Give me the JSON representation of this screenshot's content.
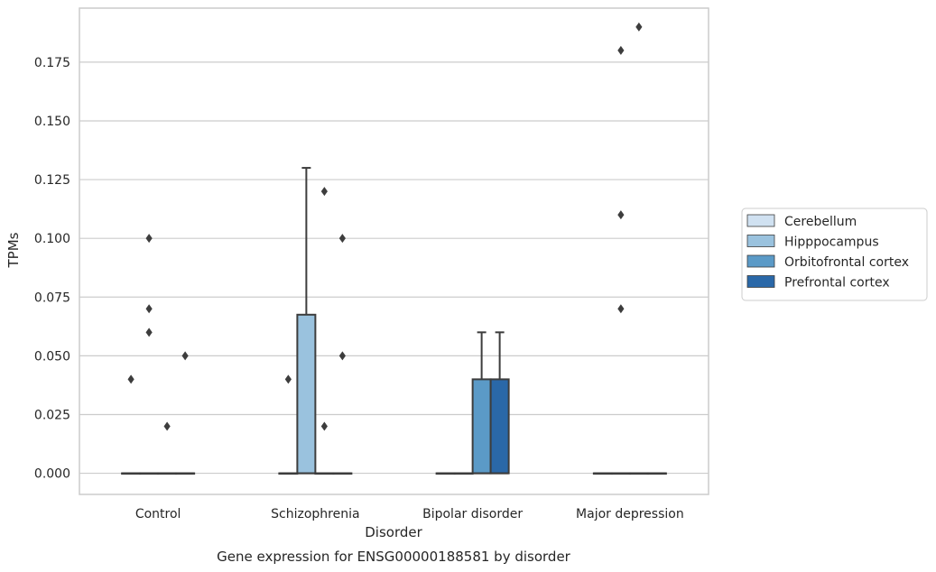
{
  "caption": "Gene expression for ENSG00000188581 by disorder",
  "chart_data": {
    "type": "box",
    "title": "",
    "xlabel": "Disorder",
    "ylabel": "TPMs",
    "ylim": [
      -0.009,
      0.198
    ],
    "yticks": [
      0.0,
      0.025,
      0.05,
      0.075,
      0.1,
      0.125,
      0.15,
      0.175
    ],
    "ytick_labels": [
      "0.000",
      "0.025",
      "0.050",
      "0.075",
      "0.100",
      "0.125",
      "0.150",
      "0.175"
    ],
    "grid": "horizontal",
    "legend_position": "right",
    "categories": [
      "Control",
      "Schizophrenia",
      "Bipolar disorder",
      "Major depression"
    ],
    "series": [
      {
        "name": "Cerebellum",
        "color": "#d0e1f1",
        "boxes": [
          {
            "category": "Control",
            "q1": 0,
            "median": 0,
            "q3": 0,
            "whisker_low": 0,
            "whisker_high": 0,
            "outliers": [
              0.04
            ]
          },
          {
            "category": "Schizophrenia",
            "q1": 0,
            "median": 0,
            "q3": 0,
            "whisker_low": 0,
            "whisker_high": 0,
            "outliers": [
              0.04
            ]
          },
          {
            "category": "Bipolar disorder",
            "q1": 0,
            "median": 0,
            "q3": 0,
            "whisker_low": 0,
            "whisker_high": 0,
            "outliers": []
          },
          {
            "category": "Major depression",
            "q1": 0,
            "median": 0,
            "q3": 0,
            "whisker_low": 0,
            "whisker_high": 0,
            "outliers": []
          }
        ]
      },
      {
        "name": "Hipppocampus",
        "color": "#9ac2de",
        "boxes": [
          {
            "category": "Control",
            "q1": 0,
            "median": 0,
            "q3": 0,
            "whisker_low": 0,
            "whisker_high": 0,
            "outliers": [
              0.1,
              0.07,
              0.06
            ]
          },
          {
            "category": "Schizophrenia",
            "q1": 0,
            "median": 0,
            "q3": 0.0675,
            "whisker_low": 0,
            "whisker_high": 0.13,
            "outliers": []
          },
          {
            "category": "Bipolar disorder",
            "q1": 0,
            "median": 0,
            "q3": 0,
            "whisker_low": 0,
            "whisker_high": 0,
            "outliers": []
          },
          {
            "category": "Major depression",
            "q1": 0,
            "median": 0,
            "q3": 0,
            "whisker_low": 0,
            "whisker_high": 0,
            "outliers": [
              0.18,
              0.11,
              0.07
            ]
          }
        ]
      },
      {
        "name": "Orbitofrontal cortex",
        "color": "#5b9ac7",
        "boxes": [
          {
            "category": "Control",
            "q1": 0,
            "median": 0,
            "q3": 0,
            "whisker_low": 0,
            "whisker_high": 0,
            "outliers": [
              0.02
            ]
          },
          {
            "category": "Schizophrenia",
            "q1": 0,
            "median": 0,
            "q3": 0,
            "whisker_low": 0,
            "whisker_high": 0,
            "outliers": [
              0.12,
              0.02
            ]
          },
          {
            "category": "Bipolar disorder",
            "q1": 0,
            "median": 0,
            "q3": 0.04,
            "whisker_low": 0,
            "whisker_high": 0.06,
            "outliers": []
          },
          {
            "category": "Major depression",
            "q1": 0,
            "median": 0,
            "q3": 0,
            "whisker_low": 0,
            "whisker_high": 0,
            "outliers": [
              0.19
            ]
          }
        ]
      },
      {
        "name": "Prefrontal cortex",
        "color": "#2a68a8",
        "boxes": [
          {
            "category": "Control",
            "q1": 0,
            "median": 0,
            "q3": 0,
            "whisker_low": 0,
            "whisker_high": 0,
            "outliers": [
              0.05
            ]
          },
          {
            "category": "Schizophrenia",
            "q1": 0,
            "median": 0,
            "q3": 0,
            "whisker_low": 0,
            "whisker_high": 0,
            "outliers": [
              0.1,
              0.05
            ]
          },
          {
            "category": "Bipolar disorder",
            "q1": 0,
            "median": 0,
            "q3": 0.04,
            "whisker_low": 0,
            "whisker_high": 0.06,
            "outliers": []
          },
          {
            "category": "Major depression",
            "q1": 0,
            "median": 0,
            "q3": 0,
            "whisker_low": 0,
            "whisker_high": 0,
            "outliers": []
          }
        ]
      }
    ]
  }
}
